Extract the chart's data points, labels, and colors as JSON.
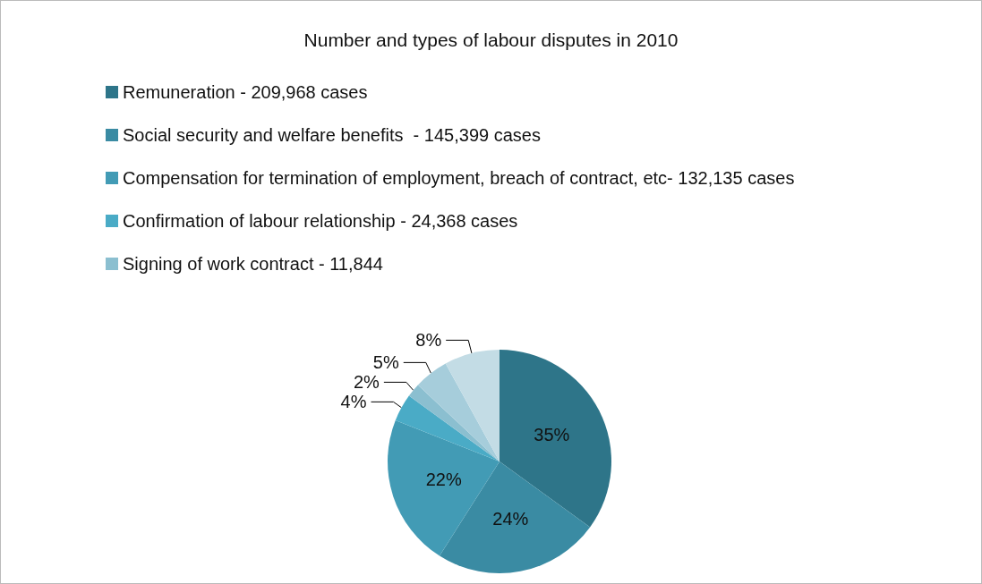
{
  "chart_data": {
    "type": "pie",
    "title": "Number and types of labour disputes in 2010",
    "categories": [
      "Remuneration - 209,968 cases",
      "Social security and welfare benefits  - 145,399 cases",
      "Compensation for termination of employment, breach of contract, etc- 132,135 cases",
      "Confirmation of labour relationship - 24,368 cases",
      "Signing of work contract - 11,844",
      null,
      null
    ],
    "values": [
      35,
      24,
      22,
      4,
      2,
      5,
      8
    ],
    "colors": [
      "#2e7589",
      "#3a8ba3",
      "#429bb5",
      "#4aabc6",
      "#8bbfd0",
      "#a6cddb",
      "#c3dce5"
    ],
    "value_labels": [
      "35%",
      "24%",
      "22%",
      "4%",
      "2%",
      "5%",
      "8%"
    ],
    "legend": "top left"
  }
}
